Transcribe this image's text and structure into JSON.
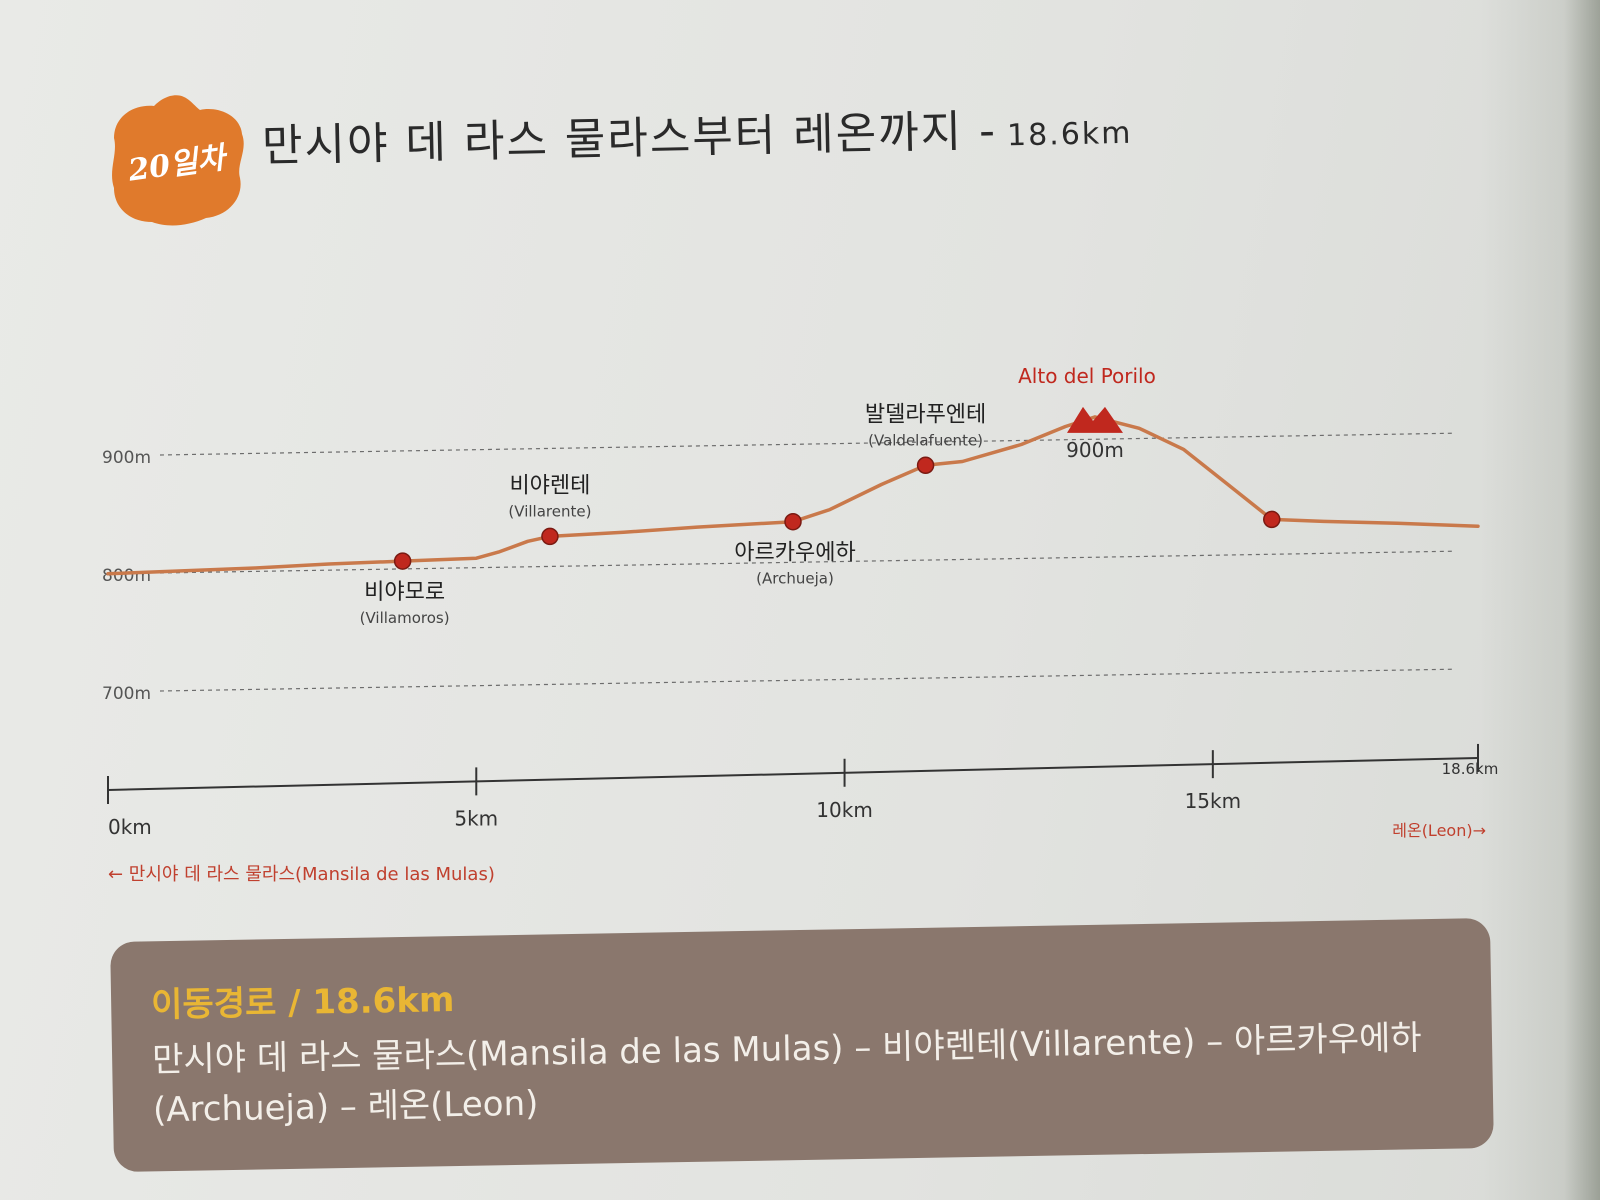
{
  "header": {
    "day_label": "20일차",
    "title": "만시야 데 라스 물라스부터 레온까지 -",
    "distance": "18.6km"
  },
  "chart_data": {
    "type": "line",
    "title": "",
    "xlabel": "",
    "ylabel": "",
    "xlim": [
      0,
      18.6
    ],
    "ylim": [
      650,
      960
    ],
    "grid": true,
    "ygrid_labels": [
      {
        "value": 900,
        "label": "900m"
      },
      {
        "value": 800,
        "label": "800m"
      },
      {
        "value": 700,
        "label": "700m"
      }
    ],
    "xticks": [
      {
        "value": 0,
        "label": "0km"
      },
      {
        "value": 5,
        "label": "5km"
      },
      {
        "value": 10,
        "label": "10km"
      },
      {
        "value": 15,
        "label": "15km"
      },
      {
        "value": 18.6,
        "label": "18.6km"
      }
    ],
    "series": [
      {
        "color": "#c9794b",
        "x": [
          0,
          1,
          2,
          3,
          4.0,
          5.0,
          5.3,
          5.7,
          6.0,
          7,
          8,
          9.3,
          9.8,
          10.5,
          11.1,
          11.6,
          12.4,
          13.0,
          13.4,
          14.0,
          14.6,
          15.2,
          15.8,
          16.5,
          17.5,
          18.6
        ],
        "y": [
          801,
          803,
          805,
          808,
          810,
          812,
          817,
          826,
          830,
          833,
          837,
          841,
          851,
          872,
          888,
          891,
          905,
          920,
          928,
          918,
          900,
          870,
          840,
          838,
          836,
          833
        ]
      }
    ],
    "points": [
      {
        "x": 4.0,
        "y": 810,
        "name_ko": "비야모로",
        "name": "(Villamoros)",
        "label_pos": "below"
      },
      {
        "x": 6.0,
        "y": 830,
        "name_ko": "비야렌테",
        "name": "(Villarente)",
        "label_pos": "above"
      },
      {
        "x": 9.3,
        "y": 841,
        "name_ko": "아르카우에하",
        "name": "(Archueja)",
        "label_pos": "below"
      },
      {
        "x": 11.1,
        "y": 888,
        "name_ko": "발델라푸엔테",
        "name": "(Valdelafuente)",
        "label_pos": "above"
      },
      {
        "x": 15.8,
        "y": 840,
        "name_ko": "",
        "name": "",
        "label_pos": "none"
      }
    ],
    "peak": {
      "x": 13.4,
      "y": 928,
      "name": "Alto del Porilo",
      "elevation_label": "900m",
      "color": "#c0281e"
    },
    "start_label": "← 만시야 데 라스 물라스(Mansila de las Mulas)",
    "end_label": "레온(Leon)→"
  },
  "route": {
    "heading": "이동경로 / 18.6km",
    "text": "만시야 데 라스 물라스(Mansila de las Mulas) – 비야렌테(Villarente) – 아르카우에하(Archueja) – 레온(Leon)"
  },
  "colors": {
    "badge": "#e07a2c",
    "line": "#c9794b",
    "stop": "#c0281e",
    "route_bg": "#8a776d",
    "route_heading": "#e9b634"
  }
}
